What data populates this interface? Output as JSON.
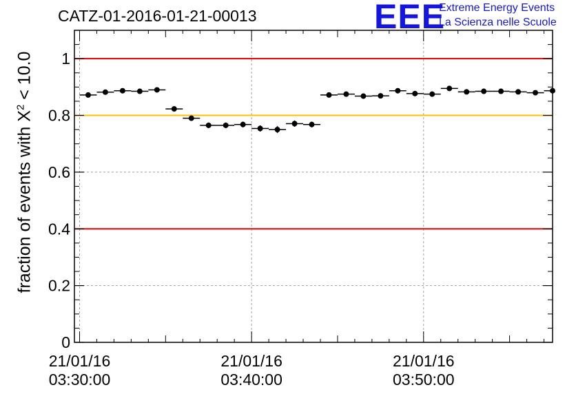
{
  "header": {
    "title": "CATZ-01-2016-01-21-00013",
    "logo_text": "EEE",
    "logo_line1": "Extreme Energy Events",
    "logo_line2": "La Scienza nelle Scuole",
    "logo_color": "#1515e0"
  },
  "chart_data": {
    "type": "scatter",
    "title": "CATZ-01-2016-01-21-00013",
    "ylabel_prefix": "fraction of events with ",
    "ylabel_symbol": "X",
    "ylabel_sup": "2",
    "ylabel_suffix": " < 10.0",
    "xlabel": "",
    "x_unit": "minutes after 03:30:00",
    "xlim_minutes": [
      -0.3,
      27.5
    ],
    "ylim": [
      0,
      1.1
    ],
    "y_ticks": [
      "0",
      "0.2",
      "0.4",
      "0.6",
      "0.8",
      "1"
    ],
    "y_tick_values": [
      0,
      0.2,
      0.4,
      0.6,
      0.8,
      1.0
    ],
    "x_tick_labels": [
      {
        "minute": 0,
        "date": "21/01/16",
        "time": "03:30:00"
      },
      {
        "minute": 10,
        "date": "21/01/16",
        "time": "03:40:00"
      },
      {
        "minute": 20,
        "date": "21/01/16",
        "time": "03:50:00"
      }
    ],
    "grid": true,
    "reference_lines": [
      {
        "y": 1.0,
        "color": "#e00000"
      },
      {
        "y": 0.8,
        "color": "#ffc000"
      },
      {
        "y": 0.4,
        "color": "#e00000"
      }
    ],
    "bin_width_minutes": 1,
    "points": [
      {
        "x": 0.5,
        "y": 0.872,
        "err": 0.008
      },
      {
        "x": 1.5,
        "y": 0.882,
        "err": 0.008
      },
      {
        "x": 2.5,
        "y": 0.887,
        "err": 0.008
      },
      {
        "x": 3.5,
        "y": 0.885,
        "err": 0.008
      },
      {
        "x": 4.5,
        "y": 0.89,
        "err": 0.008
      },
      {
        "x": 5.5,
        "y": 0.823,
        "err": 0.009
      },
      {
        "x": 6.5,
        "y": 0.79,
        "err": 0.009
      },
      {
        "x": 7.5,
        "y": 0.765,
        "err": 0.01
      },
      {
        "x": 8.5,
        "y": 0.765,
        "err": 0.01
      },
      {
        "x": 9.5,
        "y": 0.768,
        "err": 0.01
      },
      {
        "x": 10.5,
        "y": 0.754,
        "err": 0.011
      },
      {
        "x": 11.5,
        "y": 0.75,
        "err": 0.012
      },
      {
        "x": 12.5,
        "y": 0.771,
        "err": 0.011
      },
      {
        "x": 13.5,
        "y": 0.768,
        "err": 0.01
      },
      {
        "x": 14.5,
        "y": 0.872,
        "err": 0.008
      },
      {
        "x": 15.5,
        "y": 0.875,
        "err": 0.008
      },
      {
        "x": 16.5,
        "y": 0.868,
        "err": 0.008
      },
      {
        "x": 17.5,
        "y": 0.869,
        "err": 0.008
      },
      {
        "x": 18.5,
        "y": 0.887,
        "err": 0.008
      },
      {
        "x": 19.5,
        "y": 0.877,
        "err": 0.008
      },
      {
        "x": 20.5,
        "y": 0.875,
        "err": 0.008
      },
      {
        "x": 21.5,
        "y": 0.895,
        "err": 0.008
      },
      {
        "x": 22.5,
        "y": 0.883,
        "err": 0.008
      },
      {
        "x": 23.5,
        "y": 0.885,
        "err": 0.008
      },
      {
        "x": 24.5,
        "y": 0.885,
        "err": 0.008
      },
      {
        "x": 25.5,
        "y": 0.883,
        "err": 0.008
      },
      {
        "x": 26.5,
        "y": 0.88,
        "err": 0.008
      },
      {
        "x": 27.5,
        "y": 0.887,
        "err": 0.008
      }
    ]
  }
}
